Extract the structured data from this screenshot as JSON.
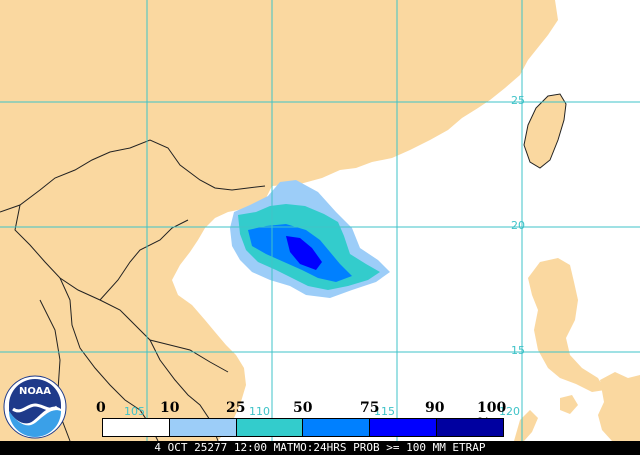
{
  "map": {
    "colors": {
      "land": "#fad8a0",
      "sea": "#ffffff",
      "borders": "#222222",
      "grid": "#3fc3c8"
    },
    "latitude_labels": [
      "25",
      "20",
      "15"
    ],
    "longitude_labels": [
      "105",
      "110",
      "115",
      "120"
    ]
  },
  "legend": {
    "tick_labels": [
      "0",
      "10",
      "25",
      "50",
      "75",
      "90",
      "100 %"
    ],
    "colors": [
      "#ffffff",
      "#9ccdf8",
      "#33cccc",
      "#0080ff",
      "#0000ff",
      "#0000a0"
    ]
  },
  "logo": {
    "text": "NOAA",
    "icon": "noaa-logo-icon"
  },
  "footer": {
    "caption": "4 OCT 25277 12:00 MATMO:24HRS PROB >= 100 MM ETRAP"
  }
}
